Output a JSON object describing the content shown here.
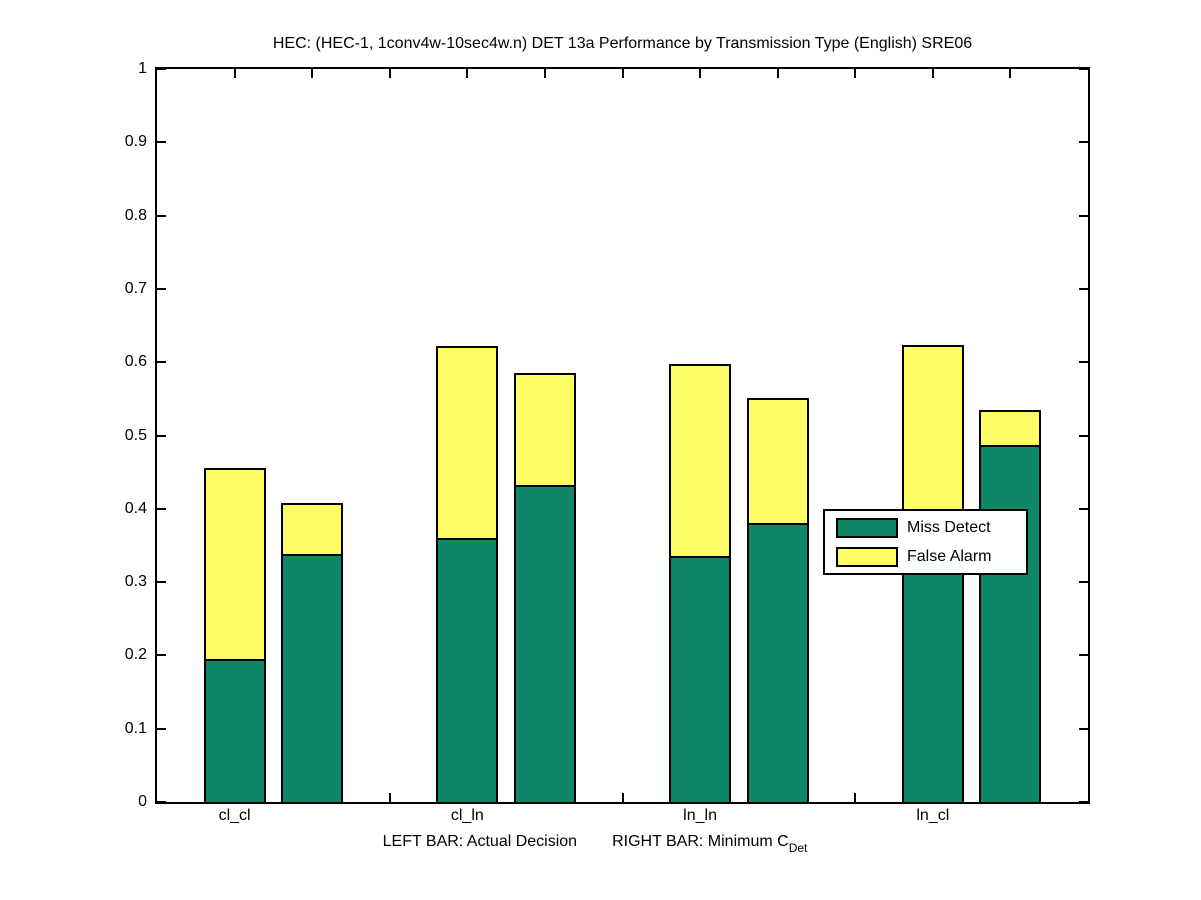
{
  "chart_data": {
    "type": "bar",
    "stacked": true,
    "title": "HEC: (HEC-1, 1conv4w-10sec4w.n) DET 13a Performance by Transmission Type (English) SRE06",
    "xlabel_left": "LEFT BAR: Actual Decision",
    "xlabel_right": "RIGHT BAR: Minimum C",
    "xlabel_subscript": "Det",
    "categories": [
      "cl_cl",
      "cl_ln",
      "ln_ln",
      "ln_cl"
    ],
    "series": [
      {
        "name": "Miss Detect",
        "color": "#0D8768"
      },
      {
        "name": "False Alarm",
        "color": "#FCFC63"
      }
    ],
    "groups": [
      {
        "category": "cl_cl",
        "left": {
          "miss_detect": 0.195,
          "false_alarm": 0.26
        },
        "right": {
          "miss_detect": 0.338,
          "false_alarm": 0.07
        }
      },
      {
        "category": "cl_ln",
        "left": {
          "miss_detect": 0.36,
          "false_alarm": 0.262
        },
        "right": {
          "miss_detect": 0.432,
          "false_alarm": 0.153
        }
      },
      {
        "category": "ln_ln",
        "left": {
          "miss_detect": 0.336,
          "false_alarm": 0.261
        },
        "right": {
          "miss_detect": 0.38,
          "false_alarm": 0.171
        }
      },
      {
        "category": "ln_cl",
        "left": {
          "miss_detect": 0.33,
          "false_alarm": 0.294
        },
        "right": {
          "miss_detect": 0.487,
          "false_alarm": 0.048
        }
      }
    ],
    "bar_meaning": {
      "left_bar": "Actual Decision",
      "right_bar": "Minimum C_Det"
    },
    "ylim": [
      0,
      1
    ],
    "ytick_values": [
      0,
      0.1,
      0.2,
      0.3,
      0.4,
      0.5,
      0.6,
      0.7,
      0.8,
      0.9,
      1
    ],
    "ytick_labels": [
      "0",
      "0.1",
      "0.2",
      "0.3",
      "0.4",
      "0.5",
      "0.6",
      "0.7",
      "0.8",
      "0.9",
      "1"
    ],
    "xlim": [
      0,
      12
    ],
    "xtick_positions": [
      1,
      2,
      3,
      4,
      5,
      6,
      7,
      8,
      9,
      10,
      11
    ],
    "bar_positions": [
      [
        1,
        2
      ],
      [
        4,
        5
      ],
      [
        7,
        8
      ],
      [
        10,
        11
      ]
    ],
    "bar_width_units": 0.8,
    "grid": false,
    "legend": {
      "position": "middle-right",
      "entries": [
        {
          "label": "Miss Detect",
          "color": "#0D8768"
        },
        {
          "label": "False Alarm",
          "color": "#FCFC63"
        }
      ]
    },
    "colors": {
      "axis": "#000000",
      "background": "#ffffff"
    }
  }
}
